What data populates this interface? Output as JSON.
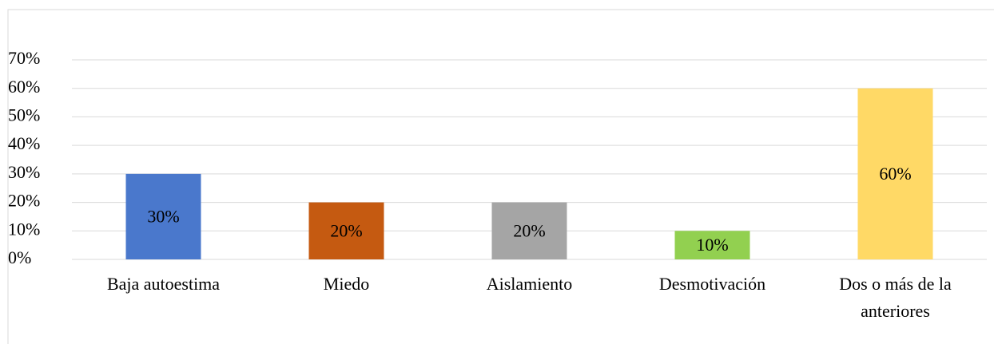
{
  "chart_data": {
    "type": "bar",
    "categories": [
      "Baja autoestima",
      "Miedo",
      "Aislamiento",
      "Desmotivación",
      "Dos o más de la anteriores"
    ],
    "values": [
      30,
      20,
      20,
      10,
      60
    ],
    "value_labels": [
      "30%",
      "20%",
      "20%",
      "10%",
      "60%"
    ],
    "colors": [
      "#4a78cc",
      "#c55a11",
      "#a5a5a5",
      "#92d050",
      "#ffd966"
    ],
    "ylim": [
      0,
      70
    ],
    "yticks": [
      {
        "value": 0,
        "label": "0%"
      },
      {
        "value": 10,
        "label": "10%"
      },
      {
        "value": 20,
        "label": "20%"
      },
      {
        "value": 30,
        "label": "30%"
      },
      {
        "value": 40,
        "label": "40%"
      },
      {
        "value": 50,
        "label": "50%"
      },
      {
        "value": 60,
        "label": "60%"
      },
      {
        "value": 70,
        "label": "70%"
      }
    ],
    "grid": true
  }
}
